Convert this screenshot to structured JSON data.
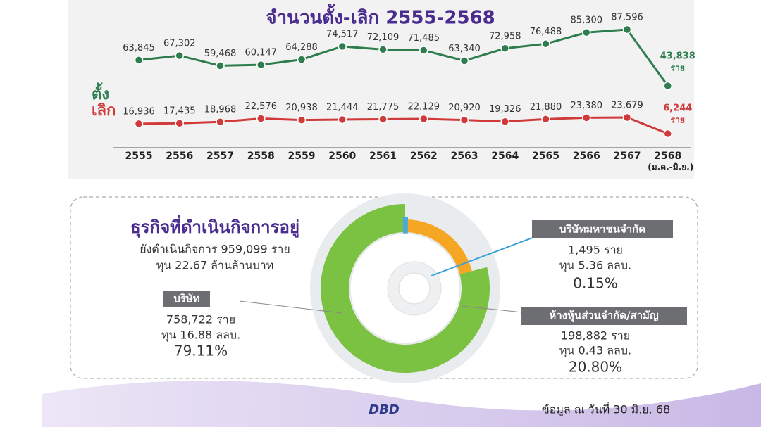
{
  "chart_data": [
    {
      "type": "line",
      "title": "จำนวนตั้ง-เลิก 2555-2568",
      "categories": [
        "2555",
        "2556",
        "2557",
        "2558",
        "2559",
        "2560",
        "2561",
        "2562",
        "2563",
        "2564",
        "2565",
        "2566",
        "2567",
        "2568"
      ],
      "category_note": "(ม.ค.-มิ.ย.)",
      "unit": "ราย",
      "series": [
        {
          "name": "ตั้ง",
          "color": "#2e7d4f",
          "values": [
            63845,
            67302,
            59468,
            60147,
            64288,
            74517,
            72109,
            71485,
            63340,
            72958,
            76488,
            85300,
            87596,
            43838
          ],
          "value_labels": [
            "63,845",
            "67,302",
            "59,468",
            "60,147",
            "64,288",
            "74,517",
            "72,109",
            "71,485",
            "63,340",
            "72,958",
            "76,488",
            "85,300",
            "87,596",
            "43,838"
          ]
        },
        {
          "name": "เลิก",
          "color": "#d03a3a",
          "values": [
            16936,
            17435,
            18968,
            22576,
            20938,
            21444,
            21775,
            22129,
            20920,
            19326,
            21880,
            23380,
            23679,
            6244
          ],
          "value_labels": [
            "16,936",
            "17,435",
            "18,968",
            "22,576",
            "20,938",
            "21,444",
            "21,775",
            "22,129",
            "20,920",
            "19,326",
            "21,880",
            "23,380",
            "23,679",
            "6,244"
          ]
        }
      ]
    },
    {
      "type": "pie",
      "title": "ธุรกิจที่ดำเนินกิจการอยู่",
      "subtitle": [
        "ยังดำเนินกิจการ 959,099 ราย",
        "ทุน 22.67 ล้านล้านบาท"
      ],
      "categories": [
        "บริษัท",
        "ห้างหุ้นส่วนจำกัด/สามัญ",
        "บริษัทมหาชนจำกัด"
      ],
      "values": [
        79.11,
        20.8,
        0.15
      ],
      "value_labels": [
        "79.11%",
        "20.80%",
        "0.15%"
      ],
      "colors": [
        "#7cc242",
        "#f5a623",
        "#4aa8e0"
      ],
      "details": [
        [
          "758,722 ราย",
          "ทุน 16.88 ลลบ."
        ],
        [
          "198,882 ราย",
          "ทุน 0.43 ลลบ."
        ],
        [
          "1,495 ราย",
          "ทุน 5.36 ลลบ."
        ]
      ]
    }
  ],
  "footer": {
    "logo": "DBD",
    "note": "ข้อมูล ณ วันที่ 30 มิ.ย. 68"
  }
}
